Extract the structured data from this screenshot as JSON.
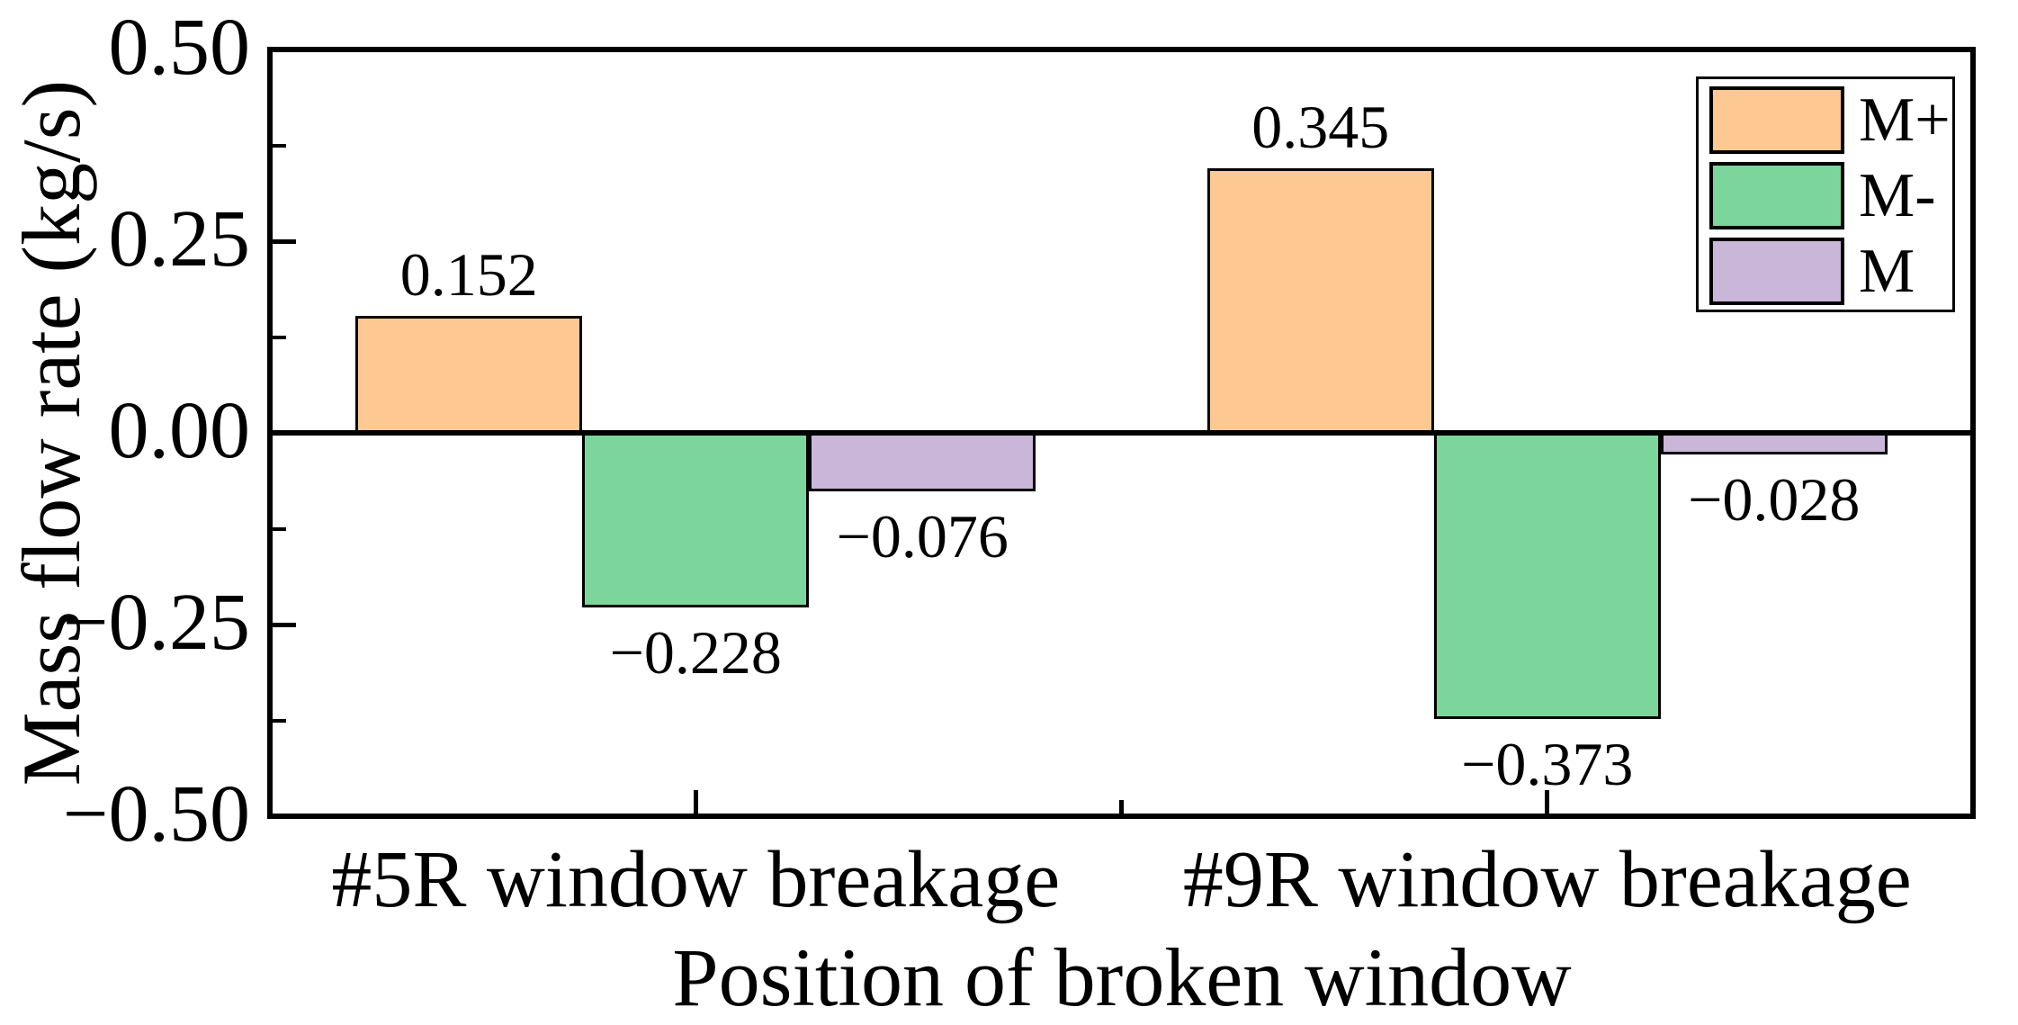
{
  "chart_data": {
    "type": "bar",
    "title": "",
    "xlabel": "Position of broken window",
    "ylabel": "Mass flow rate (kg/s)",
    "categories": [
      "#5R window breakage",
      "#9R window breakage"
    ],
    "series": [
      {
        "name": "M+",
        "color": "#FDC892",
        "values": [
          0.152,
          0.345
        ],
        "value_labels": [
          "0.152",
          "0.345"
        ]
      },
      {
        "name": "M-",
        "color": "#7CD69C",
        "values": [
          -0.228,
          -0.373
        ],
        "value_labels": [
          "−0.228",
          "−0.373"
        ]
      },
      {
        "name": "M",
        "color": "#C9B6D8",
        "values": [
          -0.076,
          -0.028
        ],
        "value_labels": [
          "−0.076",
          "−0.028"
        ]
      }
    ],
    "ylim": [
      -0.5,
      0.5
    ],
    "yticks": [
      {
        "value": 0.5,
        "label": "0.50"
      },
      {
        "value": 0.25,
        "label": "0.25"
      },
      {
        "value": 0.0,
        "label": "0.00"
      },
      {
        "value": -0.25,
        "label": "−0.25"
      },
      {
        "value": -0.5,
        "label": "−0.50"
      }
    ],
    "yticks_minor": [
      0.375,
      0.125,
      -0.125,
      -0.375
    ],
    "xticks_minor_between_groups": true,
    "grid": false,
    "legend_position": "upper-right",
    "bar_edge_color": "#000000",
    "axis_color": "#000000",
    "background_color": "#ffffff"
  }
}
